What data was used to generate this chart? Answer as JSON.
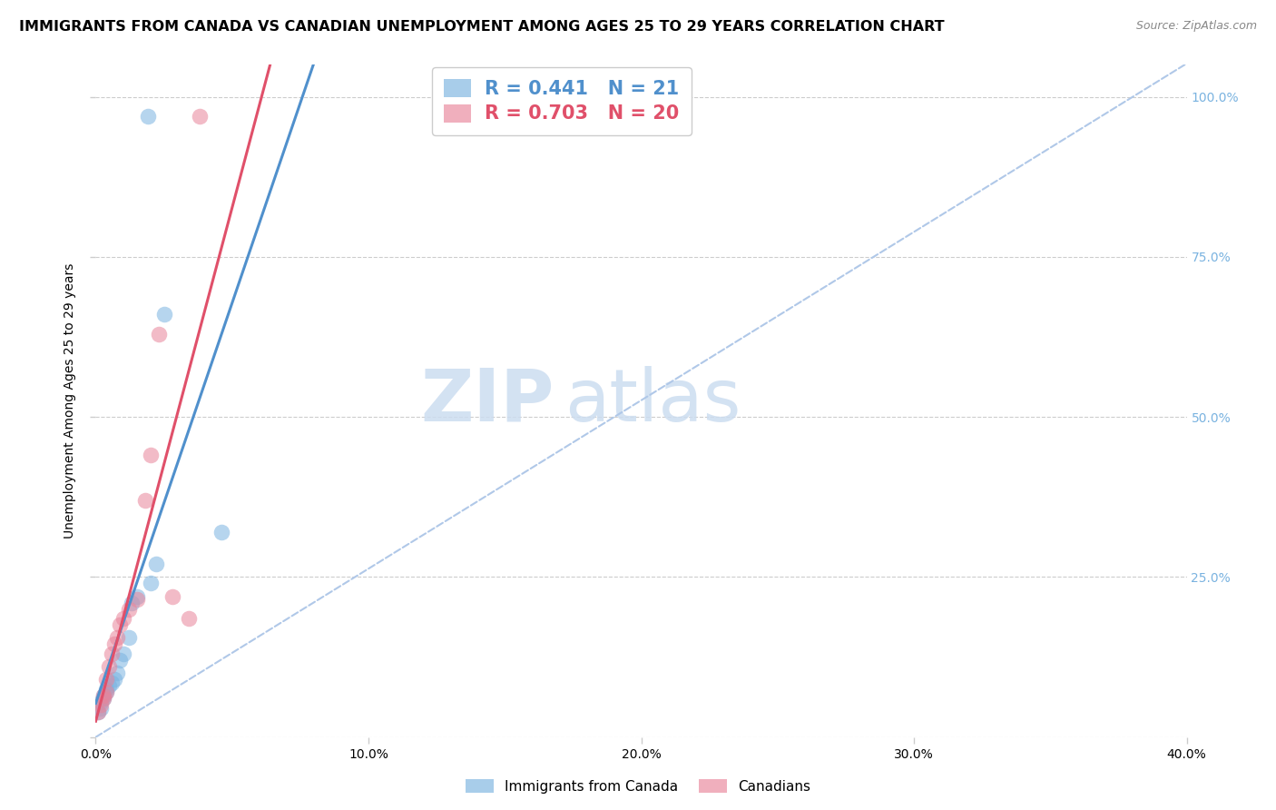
{
  "title": "IMMIGRANTS FROM CANADA VS CANADIAN UNEMPLOYMENT AMONG AGES 25 TO 29 YEARS CORRELATION CHART",
  "source": "Source: ZipAtlas.com",
  "ylabel": "Unemployment Among Ages 25 to 29 years",
  "xlim": [
    0.0,
    0.4
  ],
  "ylim": [
    0.0,
    1.05
  ],
  "yticks": [
    0.0,
    0.25,
    0.5,
    0.75,
    1.0
  ],
  "ytick_labels_right": [
    "",
    "25.0%",
    "50.0%",
    "75.0%",
    "100.0%"
  ],
  "xticks": [
    0.0,
    0.1,
    0.2,
    0.3,
    0.4
  ],
  "xtick_labels": [
    "0.0%",
    "10.0%",
    "20.0%",
    "30.0%",
    "40.0%"
  ],
  "blue_scatter_x": [
    0.001,
    0.002,
    0.002,
    0.003,
    0.003,
    0.004,
    0.004,
    0.005,
    0.006,
    0.007,
    0.008,
    0.009,
    0.01,
    0.012,
    0.013,
    0.015,
    0.02,
    0.022,
    0.025,
    0.046,
    0.019
  ],
  "blue_scatter_y": [
    0.04,
    0.045,
    0.055,
    0.06,
    0.065,
    0.07,
    0.075,
    0.08,
    0.085,
    0.09,
    0.1,
    0.12,
    0.13,
    0.155,
    0.21,
    0.22,
    0.24,
    0.27,
    0.66,
    0.32,
    0.97
  ],
  "pink_scatter_x": [
    0.001,
    0.002,
    0.003,
    0.003,
    0.004,
    0.004,
    0.005,
    0.006,
    0.007,
    0.008,
    0.009,
    0.01,
    0.012,
    0.015,
    0.018,
    0.02,
    0.023,
    0.028,
    0.034,
    0.038
  ],
  "pink_scatter_y": [
    0.04,
    0.05,
    0.06,
    0.065,
    0.07,
    0.09,
    0.11,
    0.13,
    0.145,
    0.155,
    0.175,
    0.185,
    0.2,
    0.215,
    0.37,
    0.44,
    0.63,
    0.22,
    0.185,
    0.97
  ],
  "blue_R": 0.441,
  "blue_N": 21,
  "pink_R": 0.703,
  "pink_N": 20,
  "blue_color": "#7ab3e0",
  "pink_color": "#e8849a",
  "blue_line_color": "#5090cc",
  "pink_line_color": "#e0506a",
  "diagonal_color": "#b0c8e8",
  "background_color": "#ffffff",
  "title_fontsize": 11.5,
  "source_fontsize": 9,
  "ylabel_fontsize": 10,
  "tick_fontsize": 10,
  "legend_fontsize": 14,
  "watermark_color": "#ddeeff",
  "watermark_fontsize": 58
}
